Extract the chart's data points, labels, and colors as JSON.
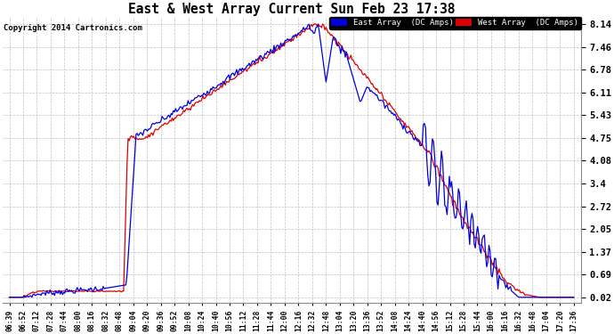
{
  "title": "East & West Array Current Sun Feb 23 17:38",
  "copyright": "Copyright 2014 Cartronics.com",
  "legend_east": "East Array  (DC Amps)",
  "legend_west": "West Array  (DC Amps)",
  "east_color": "#0000dd",
  "west_color": "#dd0000",
  "background_color": "#ffffff",
  "grid_color": "#c0c0c0",
  "yticks": [
    0.02,
    0.69,
    1.37,
    2.05,
    2.72,
    3.4,
    4.08,
    4.75,
    5.43,
    6.11,
    6.78,
    7.46,
    8.14
  ],
  "ylim_min": -0.15,
  "ylim_max": 8.35,
  "xtick_labels": [
    "06:39",
    "06:52",
    "07:12",
    "07:28",
    "07:44",
    "08:00",
    "08:16",
    "08:32",
    "08:48",
    "09:04",
    "09:20",
    "09:36",
    "09:52",
    "10:08",
    "10:24",
    "10:40",
    "10:56",
    "11:12",
    "11:28",
    "11:44",
    "12:00",
    "12:16",
    "12:32",
    "12:48",
    "13:04",
    "13:20",
    "13:36",
    "13:52",
    "14:08",
    "14:24",
    "14:40",
    "14:56",
    "15:12",
    "15:28",
    "15:44",
    "16:00",
    "16:16",
    "16:32",
    "16:48",
    "17:04",
    "17:20",
    "17:36"
  ],
  "figwidth": 6.9,
  "figheight": 3.75,
  "dpi": 100
}
